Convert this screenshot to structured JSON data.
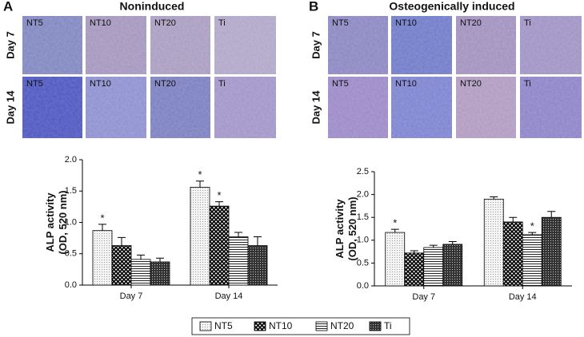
{
  "chart_data": [
    {
      "type": "bar",
      "panel_label": "A",
      "title": "Noninduced",
      "image_rows": [
        "Day 7",
        "Day 14"
      ],
      "image_columns": [
        "NT5",
        "NT10",
        "NT20",
        "Ti"
      ],
      "ylabel": [
        "ALP activity",
        "(OD, 520 nm)"
      ],
      "categories": [
        "Day 7",
        "Day 14"
      ],
      "ylim": [
        0,
        2
      ],
      "yticks": [
        {
          "value": 0,
          "label": "0.0"
        },
        0.5,
        {
          "value": 1,
          "label": "1.0"
        },
        1.5,
        {
          "value": 2,
          "label": "2.0"
        }
      ],
      "legend": "bottom",
      "series": [
        {
          "name": "NT5",
          "pattern": "dots",
          "values": [
            0.87,
            1.56
          ],
          "errors": [
            0.1,
            0.1
          ],
          "annotations": [
            "*",
            "*"
          ]
        },
        {
          "name": "NT10",
          "pattern": "checker",
          "values": [
            0.63,
            1.26
          ],
          "errors": [
            0.13,
            0.07
          ],
          "annotations": [
            null,
            "*"
          ]
        },
        {
          "name": "NT20",
          "pattern": "hlines",
          "values": [
            0.41,
            0.77
          ],
          "errors": [
            0.07,
            0.07
          ],
          "annotations": [
            null,
            null
          ]
        },
        {
          "name": "Ti",
          "pattern": "dark",
          "values": [
            0.37,
            0.63
          ],
          "errors": [
            0.06,
            0.14
          ],
          "annotations": [
            null,
            null
          ]
        }
      ]
    },
    {
      "type": "bar",
      "panel_label": "B",
      "title": "Osteogenically induced",
      "image_rows": [
        "Day 7",
        "Day 14"
      ],
      "image_columns": [
        "NT5",
        "NT10",
        "NT20",
        "Ti"
      ],
      "ylabel": [
        "ALP activity",
        "(OD, 520 nm)"
      ],
      "categories": [
        "Day 7",
        "Day 14"
      ],
      "ylim": [
        0,
        2.5
      ],
      "yticks": [
        {
          "value": 0,
          "label": "0.0"
        },
        0.5,
        {
          "value": 1,
          "label": "1.0"
        },
        1.5,
        {
          "value": 2,
          "label": "2.0"
        },
        2.5
      ],
      "series": [
        {
          "name": "NT5",
          "pattern": "dots",
          "values": [
            1.17,
            1.9
          ],
          "errors": [
            0.07,
            0.05
          ],
          "annotations": [
            "*",
            null
          ]
        },
        {
          "name": "NT10",
          "pattern": "checker",
          "values": [
            0.72,
            1.4
          ],
          "errors": [
            0.05,
            0.1
          ],
          "annotations": [
            null,
            null
          ]
        },
        {
          "name": "NT20",
          "pattern": "hlines",
          "values": [
            0.84,
            1.12
          ],
          "errors": [
            0.05,
            0.05
          ],
          "annotations": [
            null,
            "*"
          ]
        },
        {
          "name": "Ti",
          "pattern": "dark",
          "values": [
            0.91,
            1.5
          ],
          "errors": [
            0.06,
            0.13
          ],
          "annotations": [
            null,
            null
          ]
        }
      ]
    }
  ]
}
